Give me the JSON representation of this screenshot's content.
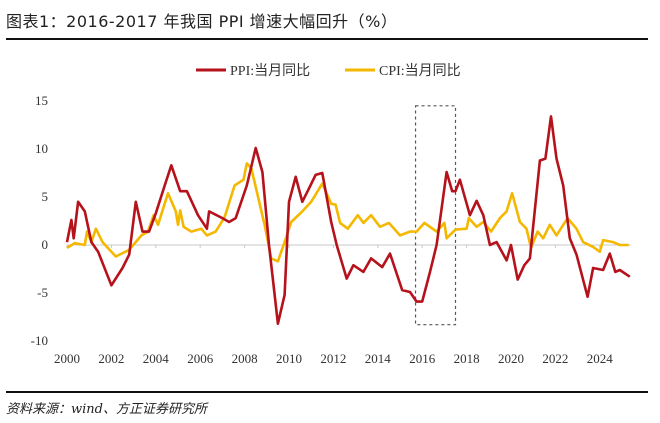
{
  "title": "图表1：2016-2017 年我国 PPI 增速大幅回升（%）",
  "source": "资料来源：wind、方正证券研究所",
  "chart_data": {
    "type": "line",
    "title": "",
    "xlabel": "",
    "ylabel": "",
    "xlim": [
      2000,
      2025.4
    ],
    "ylim": [
      -10,
      15
    ],
    "xticks": [
      "2000",
      "2002",
      "2004",
      "2006",
      "2008",
      "2010",
      "2012",
      "2014",
      "2016",
      "2018",
      "2020",
      "2022",
      "2024"
    ],
    "yticks": [
      "15",
      "10",
      "5",
      "0",
      "-5",
      "-10"
    ],
    "grid": false,
    "legend": "top-center",
    "highlight_box": {
      "x": [
        2015.7,
        2017.5
      ],
      "y": [
        -8.3,
        14.5
      ]
    },
    "series": [
      {
        "name": "PPI:当月同比",
        "color": "#b5121b",
        "points": [
          [
            2000.0,
            0.3
          ],
          [
            2000.2,
            2.6
          ],
          [
            2000.3,
            0.7
          ],
          [
            2000.5,
            4.5
          ],
          [
            2000.8,
            3.5
          ],
          [
            2001.1,
            0.3
          ],
          [
            2001.4,
            -0.7
          ],
          [
            2002.0,
            -4.2
          ],
          [
            2002.5,
            -2.4
          ],
          [
            2002.8,
            -1.0
          ],
          [
            2003.1,
            4.5
          ],
          [
            2003.4,
            1.4
          ],
          [
            2003.7,
            1.4
          ],
          [
            2004.0,
            3.3
          ],
          [
            2004.4,
            6.2
          ],
          [
            2004.7,
            8.3
          ],
          [
            2005.1,
            5.6
          ],
          [
            2005.4,
            5.6
          ],
          [
            2005.9,
            3.1
          ],
          [
            2006.3,
            1.7
          ],
          [
            2006.4,
            3.5
          ],
          [
            2007.0,
            2.8
          ],
          [
            2007.3,
            2.4
          ],
          [
            2007.6,
            2.8
          ],
          [
            2008.1,
            6.2
          ],
          [
            2008.5,
            10.1
          ],
          [
            2008.8,
            7.6
          ],
          [
            2009.1,
            0
          ],
          [
            2009.5,
            -8.2
          ],
          [
            2009.8,
            -5.2
          ],
          [
            2010.0,
            4.5
          ],
          [
            2010.3,
            7.1
          ],
          [
            2010.6,
            4.5
          ],
          [
            2010.9,
            5.9
          ],
          [
            2011.2,
            7.3
          ],
          [
            2011.5,
            7.5
          ],
          [
            2011.9,
            2.4
          ],
          [
            2012.15,
            0
          ],
          [
            2012.6,
            -3.5
          ],
          [
            2012.9,
            -2.1
          ],
          [
            2013.35,
            -2.8
          ],
          [
            2013.7,
            -1.4
          ],
          [
            2014.2,
            -2.3
          ],
          [
            2014.55,
            -0.9
          ],
          [
            2015.1,
            -4.7
          ],
          [
            2015.45,
            -4.9
          ],
          [
            2015.75,
            -5.9
          ],
          [
            2016.0,
            -5.9
          ],
          [
            2016.35,
            -2.8
          ],
          [
            2016.65,
            0
          ],
          [
            2017.1,
            7.6
          ],
          [
            2017.35,
            5.6
          ],
          [
            2017.5,
            5.6
          ],
          [
            2017.7,
            6.8
          ],
          [
            2018.15,
            3.1
          ],
          [
            2018.45,
            4.6
          ],
          [
            2018.75,
            3.1
          ],
          [
            2019.05,
            0
          ],
          [
            2019.35,
            0.3
          ],
          [
            2019.8,
            -1.6
          ],
          [
            2020.0,
            0
          ],
          [
            2020.3,
            -3.6
          ],
          [
            2020.6,
            -2.1
          ],
          [
            2020.85,
            -1.4
          ],
          [
            2021.3,
            8.8
          ],
          [
            2021.55,
            9.0
          ],
          [
            2021.8,
            13.4
          ],
          [
            2022.05,
            9.0
          ],
          [
            2022.35,
            6.2
          ],
          [
            2022.65,
            0.7
          ],
          [
            2022.95,
            -1.0
          ],
          [
            2023.45,
            -5.4
          ],
          [
            2023.7,
            -2.4
          ],
          [
            2024.15,
            -2.6
          ],
          [
            2024.45,
            -0.9
          ],
          [
            2024.7,
            -2.8
          ],
          [
            2024.9,
            -2.6
          ],
          [
            2025.35,
            -3.3
          ]
        ]
      },
      {
        "name": "CPI:当月同比",
        "color": "#f5b800",
        "points": [
          [
            2000.0,
            -0.3
          ],
          [
            2000.35,
            0.2
          ],
          [
            2000.8,
            0
          ],
          [
            2000.9,
            1.4
          ],
          [
            2001.1,
            0.3
          ],
          [
            2001.3,
            1.7
          ],
          [
            2001.6,
            0.3
          ],
          [
            2002.2,
            -1.2
          ],
          [
            2002.8,
            -0.5
          ],
          [
            2003.35,
            1.0
          ],
          [
            2003.65,
            1.4
          ],
          [
            2003.9,
            3.1
          ],
          [
            2004.1,
            2.1
          ],
          [
            2004.55,
            5.4
          ],
          [
            2004.9,
            3.5
          ],
          [
            2005.0,
            2.1
          ],
          [
            2005.1,
            3.6
          ],
          [
            2005.25,
            1.9
          ],
          [
            2005.6,
            1.4
          ],
          [
            2006.05,
            1.7
          ],
          [
            2006.3,
            1.0
          ],
          [
            2006.7,
            1.4
          ],
          [
            2007.1,
            2.9
          ],
          [
            2007.55,
            6.2
          ],
          [
            2007.95,
            6.8
          ],
          [
            2008.1,
            8.5
          ],
          [
            2008.3,
            8.0
          ],
          [
            2008.9,
            2.1
          ],
          [
            2009.2,
            -1.4
          ],
          [
            2009.5,
            -1.7
          ],
          [
            2009.8,
            0.3
          ],
          [
            2010.1,
            2.4
          ],
          [
            2010.6,
            3.5
          ],
          [
            2011.0,
            4.5
          ],
          [
            2011.5,
            6.4
          ],
          [
            2011.9,
            4.3
          ],
          [
            2012.1,
            4.2
          ],
          [
            2012.3,
            2.3
          ],
          [
            2012.65,
            1.7
          ],
          [
            2013.1,
            3.1
          ],
          [
            2013.35,
            2.3
          ],
          [
            2013.7,
            3.1
          ],
          [
            2014.1,
            1.9
          ],
          [
            2014.5,
            2.3
          ],
          [
            2015.0,
            1.0
          ],
          [
            2015.45,
            1.4
          ],
          [
            2015.75,
            1.4
          ],
          [
            2016.1,
            2.3
          ],
          [
            2016.65,
            1.4
          ],
          [
            2017.0,
            2.3
          ],
          [
            2017.1,
            0.7
          ],
          [
            2017.5,
            1.6
          ],
          [
            2018.0,
            1.7
          ],
          [
            2018.1,
            2.8
          ],
          [
            2018.45,
            1.9
          ],
          [
            2018.75,
            2.4
          ],
          [
            2019.1,
            1.4
          ],
          [
            2019.5,
            2.8
          ],
          [
            2019.8,
            3.5
          ],
          [
            2020.05,
            5.4
          ],
          [
            2020.4,
            2.4
          ],
          [
            2020.7,
            1.7
          ],
          [
            2020.9,
            -0.3
          ],
          [
            2021.2,
            1.4
          ],
          [
            2021.45,
            0.7
          ],
          [
            2021.75,
            2.1
          ],
          [
            2022.05,
            1.0
          ],
          [
            2022.55,
            2.8
          ],
          [
            2022.95,
            1.7
          ],
          [
            2023.25,
            0.3
          ],
          [
            2023.7,
            -0.2
          ],
          [
            2024.0,
            -0.7
          ],
          [
            2024.15,
            0.5
          ],
          [
            2024.6,
            0.3
          ],
          [
            2024.9,
            0
          ],
          [
            2025.3,
            0
          ]
        ]
      }
    ]
  }
}
